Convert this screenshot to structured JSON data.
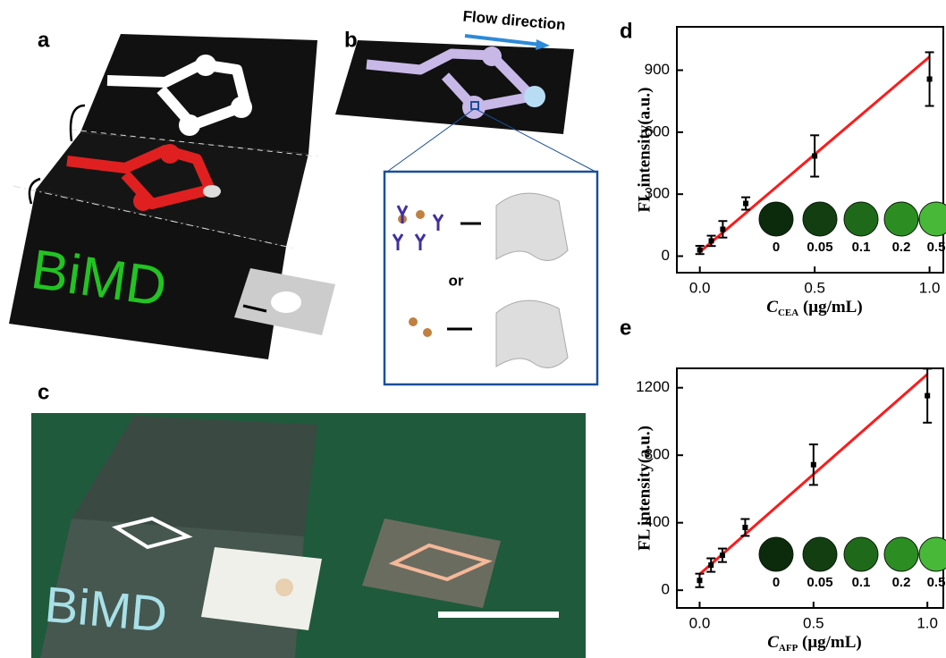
{
  "panel_labels": [
    "a",
    "b",
    "c",
    "d",
    "e"
  ],
  "illustration_a": {
    "text": "BiMD"
  },
  "illustration_b": {
    "arrow_label": "Flow direction",
    "connector": "or"
  },
  "photo_c": {
    "text": "BiMD"
  },
  "chart_data": [
    {
      "type": "scatter",
      "ylabel": "FL intensity(a.u.)",
      "xlabel": {
        "symbol": "C",
        "subscript": "CEA",
        "unit": " (μg/mL)"
      },
      "x": [
        0,
        0.05,
        0.1,
        0.2,
        0.5,
        1.0
      ],
      "values": [
        30,
        74,
        130,
        255,
        485,
        857
      ],
      "errors": [
        20,
        25,
        40,
        30,
        100,
        130
      ],
      "color": "#000000",
      "fit": {
        "x": [
          0,
          1.0
        ],
        "values": [
          20,
          965
        ],
        "color": "#ff1a1a"
      },
      "xlim": [
        -0.1,
        1.06
      ],
      "ylim": [
        -80,
        1110
      ],
      "xticks": [
        {
          "value": 0,
          "label": "0.0"
        },
        {
          "value": 0.5,
          "label": "0.5"
        },
        {
          "value": 1.0,
          "label": "1.0"
        }
      ],
      "yticks": [
        0,
        300,
        600,
        900
      ],
      "inset_labels": [
        "0",
        "0.05",
        "0.1",
        "0.2",
        "0.5"
      ]
    },
    {
      "type": "scatter",
      "ylabel": "FL intensity(a.u.)",
      "xlabel": {
        "symbol": "C",
        "subscript": "AFP",
        "unit": " (μg/mL)"
      },
      "x": [
        0,
        0.05,
        0.1,
        0.2,
        0.5,
        1.0
      ],
      "values": [
        58,
        149,
        207,
        372,
        744,
        1153
      ],
      "errors": [
        40,
        40,
        40,
        50,
        120,
        160
      ],
      "color": "#000000",
      "fit": {
        "x": [
          0,
          1.0
        ],
        "values": [
          95,
          1280
        ],
        "color": "#ff1a1a"
      },
      "xlim": [
        -0.1,
        1.07
      ],
      "ylim": [
        -105,
        1315
      ],
      "xticks": [
        {
          "value": 0,
          "label": "0.0"
        },
        {
          "value": 0.5,
          "label": "0.5"
        },
        {
          "value": 1.0,
          "label": "1.0"
        }
      ],
      "yticks": [
        0,
        400,
        800,
        1200
      ],
      "inset_labels": [
        "0",
        "0.05",
        "0.1",
        "0.2",
        "0.5"
      ]
    }
  ]
}
